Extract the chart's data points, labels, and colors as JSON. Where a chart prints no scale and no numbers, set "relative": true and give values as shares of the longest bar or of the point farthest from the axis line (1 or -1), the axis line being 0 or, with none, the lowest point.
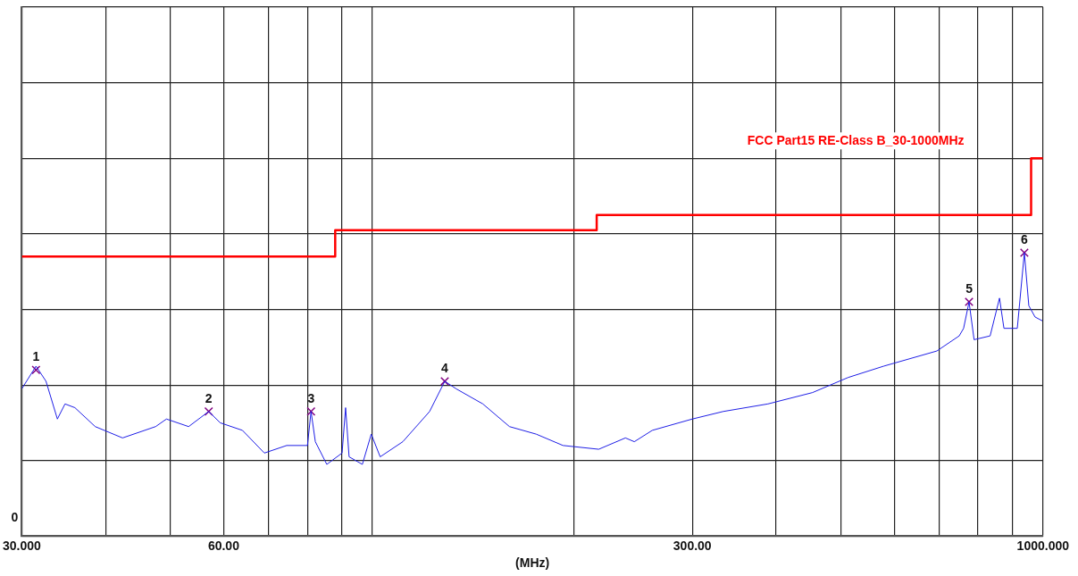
{
  "chart_data": {
    "type": "line",
    "relative": true,
    "xlabel": "(MHz)",
    "log": "x",
    "grid": true,
    "legend": false,
    "tick_labels": "x",
    "xlim": [
      30,
      1000
    ],
    "xticks": [
      {
        "value": 30,
        "label": "30.000"
      },
      {
        "value": 40,
        "label": null
      },
      {
        "value": 50,
        "label": null
      },
      {
        "value": 60,
        "label": "60.00"
      },
      {
        "value": 70,
        "label": null
      },
      {
        "value": 80,
        "label": null
      },
      {
        "value": 90,
        "label": null
      },
      {
        "value": 100,
        "label": null
      },
      {
        "value": 200,
        "label": null
      },
      {
        "value": 300,
        "label": "300.00"
      },
      {
        "value": 400,
        "label": null
      },
      {
        "value": 500,
        "label": null
      },
      {
        "value": 600,
        "label": null
      },
      {
        "value": 700,
        "label": null
      },
      {
        "value": 800,
        "label": null
      },
      {
        "value": 900,
        "label": null
      },
      {
        "value": 1000,
        "label": "1000.000"
      }
    ],
    "series": [
      {
        "type": "line",
        "color": "#1f1fe6",
        "marker": "none",
        "x": [
          30.0,
          31.5,
          32.6,
          33.9,
          34.8,
          36.0,
          38.6,
          42.4,
          47.5,
          49.3,
          53.2,
          57.0,
          59.3,
          64.0,
          69.0,
          74.5,
          80.0,
          81.0,
          82.2,
          85.5,
          90.1,
          91.2,
          92.3,
          96.6,
          99.6,
          102.7,
          111,
          121.7,
          128.2,
          133.3,
          146.1,
          160.1,
          175.5,
          192.4,
          217.5,
          238.4,
          245.8,
          261.4,
          299.9,
          333.6,
          388.9,
          453.2,
          512.3,
          578.8,
          694.5,
          750,
          761.4,
          775.8,
          789.3,
          834,
          861.3,
          874.5,
          915.5,
          938,
          952.5,
          973.1,
          997.6
        ],
        "values": [
          0.39,
          0.45,
          0.41,
          0.31,
          0.35,
          0.34,
          0.29,
          0.26,
          0.29,
          0.31,
          0.29,
          0.33,
          0.3,
          0.28,
          0.22,
          0.24,
          0.24,
          0.33,
          0.25,
          0.19,
          0.22,
          0.34,
          0.21,
          0.19,
          0.27,
          0.21,
          0.25,
          0.33,
          0.41,
          0.39,
          0.35,
          0.29,
          0.27,
          0.24,
          0.23,
          0.26,
          0.25,
          0.28,
          0.31,
          0.33,
          0.35,
          0.38,
          0.42,
          0.45,
          0.49,
          0.53,
          0.55,
          0.62,
          0.52,
          0.53,
          0.63,
          0.55,
          0.55,
          0.75,
          0.61,
          0.58,
          0.57
        ]
      },
      {
        "type": "step",
        "name": "FCC Part15 RE-Class B_30-1000MHz",
        "color": "#ff0000",
        "marker": "none",
        "x": [
          30,
          88,
          216,
          960,
          1000
        ],
        "values": [
          0.74,
          0.81,
          0.85,
          1,
          1
        ]
      },
      {
        "type": "scatter",
        "color": "#800080",
        "marker": "cross",
        "x": [
          31.5,
          57.0,
          81.0,
          128.2,
          775.8,
          938
        ],
        "values": [
          0.44,
          0.33,
          0.33,
          0.41,
          0.62,
          0.75
        ]
      }
    ],
    "annotations": [
      {
        "text": "1",
        "x": 31.5,
        "y": 0.44
      },
      {
        "text": "2",
        "x": 57.0,
        "y": 0.33
      },
      {
        "text": "3",
        "x": 81.0,
        "y": 0.33
      },
      {
        "text": "4",
        "x": 128.2,
        "y": 0.41
      },
      {
        "text": "5",
        "x": 775.8,
        "y": 0.62
      },
      {
        "text": "6",
        "x": 938,
        "y": 0.75
      },
      "0"
    ]
  }
}
